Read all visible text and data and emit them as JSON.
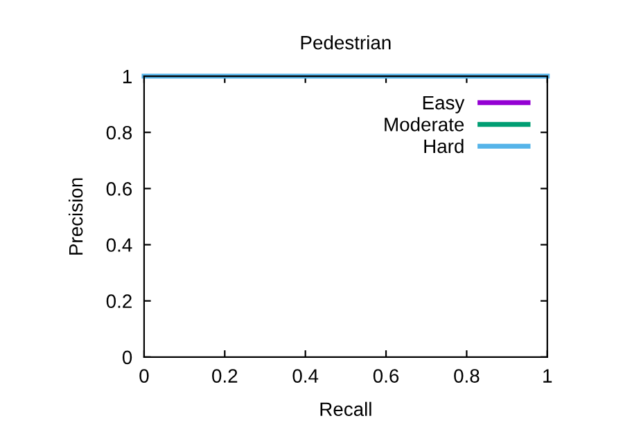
{
  "chart_data": {
    "type": "line",
    "title": "Pedestrian",
    "xlabel": "Recall",
    "ylabel": "Precision",
    "series": [
      {
        "name": "Easy",
        "color": "#9400d3",
        "values": [
          null,
          null
        ]
      },
      {
        "name": "Moderate",
        "color": "#009e73",
        "values": [
          null,
          null
        ]
      },
      {
        "name": "Hard",
        "color": "#56b4e9",
        "values": [
          1,
          1
        ]
      }
    ],
    "x": [
      0,
      1
    ],
    "xlim": [
      0,
      1
    ],
    "ylim": [
      0,
      1
    ],
    "xticks": [
      0,
      0.2,
      0.4,
      0.6,
      0.8,
      1
    ],
    "yticks": [
      0,
      0.2,
      0.4,
      0.6,
      0.8,
      1
    ],
    "grid": false,
    "legend": "top right",
    "marker": "none",
    "line_style": "solid"
  }
}
